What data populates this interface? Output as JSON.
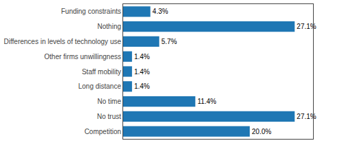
{
  "chart_data": {
    "type": "bar",
    "orientation": "horizontal",
    "categories": [
      "Competition",
      "No trust",
      "No time",
      "Long distance",
      "Staff mobility",
      "Other firms unwillingness",
      "Differences in levels of technology use",
      "Nothing",
      "Funding constraints"
    ],
    "values": [
      20.0,
      27.1,
      11.4,
      1.4,
      1.4,
      1.4,
      5.7,
      27.1,
      4.3
    ],
    "value_labels": [
      "20.0%",
      "27.1%",
      "11.4%",
      "1.4%",
      "1.4%",
      "1.4%",
      "5.7%",
      "27.1%",
      "4.3%"
    ],
    "data_labels": true,
    "xlim": [
      0,
      30
    ],
    "grid": false,
    "tick_labels": "y"
  }
}
